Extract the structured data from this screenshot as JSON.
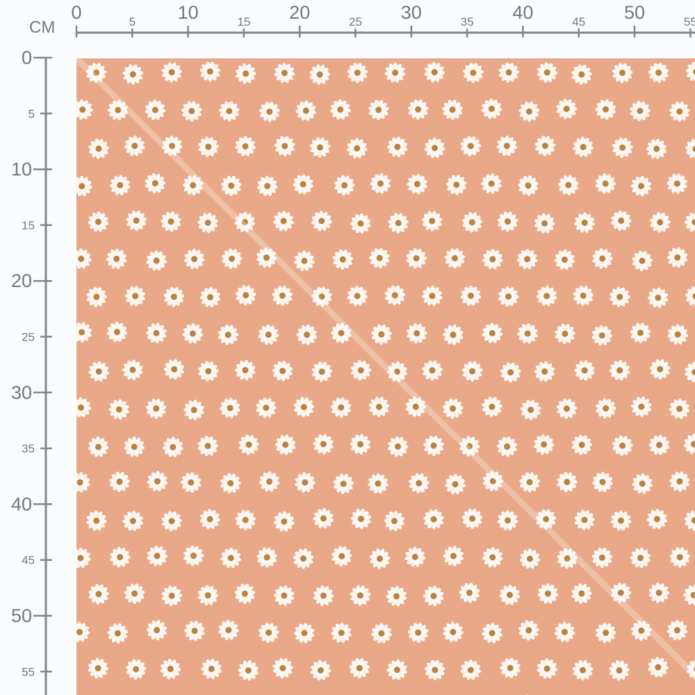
{
  "ruler": {
    "unit_label": "CM",
    "horizontal_ticks": [
      "0",
      "5",
      "10",
      "15",
      "20",
      "25",
      "30",
      "35",
      "40",
      "45",
      "50",
      "55"
    ],
    "vertical_ticks": [
      "0",
      "5",
      "10",
      "15",
      "20",
      "25",
      "30",
      "35",
      "40",
      "45",
      "50",
      "55"
    ],
    "color": "#7d868e"
  },
  "fabric": {
    "background_color": "#e9a887",
    "flower_petal_color": "#fbf6f0",
    "flower_center_color": "#b88445",
    "motif": "daisy-icon"
  }
}
